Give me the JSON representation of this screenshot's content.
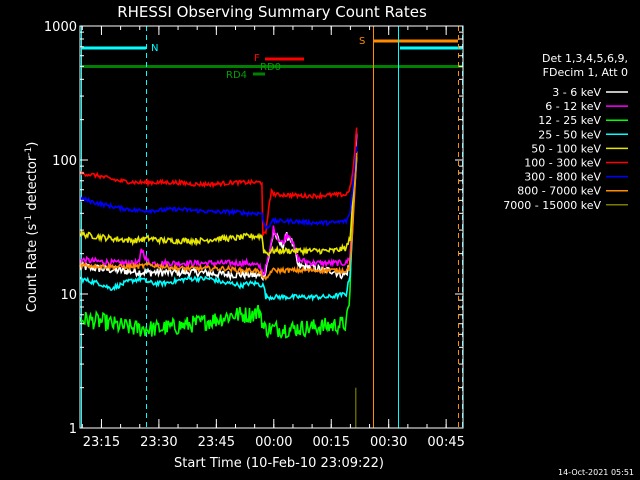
{
  "chart_data": {
    "type": "line",
    "title": "RHESSI Observing Summary Count Rates",
    "xlabel": "Start Time (10-Feb-10 23:09:22)",
    "ylabel_parts": [
      "Count Rate (s",
      "-1",
      " detector",
      "-1",
      ")"
    ],
    "y_scale": "log",
    "ylim": [
      1,
      1000
    ],
    "y_ticks": [
      {
        "value": 1,
        "label": "1"
      },
      {
        "value": 10,
        "label": "10"
      },
      {
        "value": 100,
        "label": "100"
      },
      {
        "value": 1000,
        "label": "1000"
      }
    ],
    "xlim_minutes_since_start": [
      0,
      100
    ],
    "x_ticks": [
      {
        "minute": 5.6,
        "label": "23:15"
      },
      {
        "minute": 20.6,
        "label": "23:30"
      },
      {
        "minute": 35.6,
        "label": "23:45"
      },
      {
        "minute": 50.6,
        "label": "00:00"
      },
      {
        "minute": 65.6,
        "label": "00:15"
      },
      {
        "minute": 80.6,
        "label": "00:30"
      },
      {
        "minute": 95.6,
        "label": "00:45"
      }
    ],
    "legend": {
      "position": "right",
      "header": [
        "Det 1,3,4,5,6,9,",
        "FDecim 1, Att 0"
      ]
    },
    "series": [
      {
        "name": "3 - 6 keV",
        "color": "#ffffff",
        "noise": 0.07,
        "x": [
          0,
          10,
          17,
          24,
          30,
          38,
          44,
          48,
          49.5,
          50.5,
          51.3,
          52,
          53,
          54,
          55,
          56,
          57,
          61,
          63,
          66,
          68,
          69.5,
          70.5,
          71,
          71.3,
          71.8,
          72,
          72.3
        ],
        "y": [
          16,
          15,
          14.5,
          14.5,
          14.5,
          14,
          14,
          13.5,
          20,
          29,
          27,
          24,
          23,
          27,
          26,
          21,
          16,
          16,
          15,
          15,
          14,
          14,
          17,
          30,
          50,
          90,
          120,
          165
        ]
      },
      {
        "name": "6 - 12 keV",
        "color": "#ff00ff",
        "noise": 0.05,
        "x": [
          0,
          10,
          15.5,
          16,
          17,
          18,
          23,
          30,
          38,
          44,
          47,
          48,
          49.5,
          50.5,
          51.3,
          52,
          53,
          54,
          55,
          56,
          57,
          61,
          66,
          69.5,
          70.5,
          71,
          71.3,
          71.8,
          72,
          72.3
        ],
        "y": [
          18,
          17,
          17,
          22,
          19,
          17,
          17,
          17,
          17,
          17,
          16,
          14,
          20,
          31,
          28,
          25,
          24,
          28,
          27,
          22,
          18,
          17,
          17,
          17,
          19,
          33,
          60,
          100,
          130,
          170
        ]
      },
      {
        "name": "12 - 25 keV",
        "color": "#00ff00",
        "noise": 0.15,
        "x": [
          0,
          6,
          10,
          15,
          20,
          25,
          30,
          36,
          40,
          44,
          46,
          47,
          48,
          55,
          60,
          66,
          69.5,
          70.3,
          70.6,
          71,
          71.5,
          72.3
        ],
        "y": [
          6.5,
          6.2,
          5.8,
          5.5,
          5.5,
          5.7,
          6,
          6.5,
          7,
          7,
          7.2,
          7.5,
          5.5,
          5.5,
          5.6,
          5.8,
          6,
          8,
          14,
          28,
          60,
          110
        ]
      },
      {
        "name": "25 - 50 keV",
        "color": "#00ffff",
        "noise": 0.04,
        "x": [
          0,
          5,
          8,
          10,
          13,
          16,
          17,
          19,
          22,
          25,
          28,
          31,
          34,
          36,
          38,
          40,
          42,
          44,
          46,
          48,
          48.5,
          55,
          61,
          65,
          69.5,
          70.5,
          71,
          71.5,
          72.3
        ],
        "y": [
          13,
          12,
          11,
          11.5,
          12.5,
          13,
          12.5,
          12,
          12,
          12.5,
          13,
          13,
          13,
          12.5,
          12,
          12,
          11.5,
          12,
          12,
          11.5,
          9.5,
          9.5,
          9.5,
          9.5,
          10,
          14,
          24,
          50,
          110
        ]
      },
      {
        "name": "50 - 100 keV",
        "color": "#e6e600",
        "noise": 0.05,
        "x": [
          0,
          8,
          14,
          18,
          22,
          27,
          32,
          36,
          40,
          44,
          46,
          47.5,
          48,
          49,
          50,
          55,
          61,
          66,
          69.5,
          70.5,
          71,
          71.5,
          72.3
        ],
        "y": [
          28,
          26,
          25,
          26,
          25,
          25,
          25,
          26,
          26,
          27,
          27,
          27,
          21,
          20,
          21,
          21,
          21,
          21,
          22,
          26,
          40,
          70,
          120
        ]
      },
      {
        "name": "100 - 300 keV",
        "color": "#ff0000",
        "noise": 0.035,
        "x": [
          0,
          5,
          10,
          15,
          20,
          25,
          30,
          35,
          40,
          44,
          46,
          47.5,
          47.6,
          48.5,
          49.5,
          50,
          51,
          54,
          58,
          62,
          66,
          69.5,
          70.5,
          71.2,
          71.7,
          72,
          72.3
        ],
        "y": [
          80,
          76,
          70,
          68,
          68,
          68,
          66,
          66,
          68,
          68,
          68,
          68,
          28,
          28,
          50,
          58,
          55,
          55,
          54,
          54,
          55,
          55,
          62,
          80,
          110,
          150,
          180
        ]
      },
      {
        "name": "300 - 800 keV",
        "color": "#0000ff",
        "noise": 0.035,
        "x": [
          0,
          4,
          10,
          15,
          20,
          25,
          30,
          35,
          40,
          44,
          46,
          47.5,
          48,
          49,
          50,
          55,
          61,
          66,
          69.5,
          70.5,
          71.2,
          71.7,
          72.3
        ],
        "y": [
          52,
          48,
          44,
          42,
          42,
          43,
          42,
          41,
          41,
          40,
          40,
          40,
          33,
          31,
          35,
          35,
          34,
          34,
          35,
          40,
          60,
          90,
          130
        ]
      },
      {
        "name": "800 - 7000 keV",
        "color": "#ff8c00",
        "noise": 0.04,
        "x": [
          0,
          8,
          12,
          15,
          18,
          22,
          26,
          30,
          34,
          38,
          42,
          44,
          46,
          47.5,
          48.5,
          50,
          55,
          61,
          66,
          69.5,
          70.3,
          71,
          71.6,
          72.3
        ],
        "y": [
          16.5,
          16,
          16,
          16,
          16.5,
          16,
          15.5,
          15.5,
          15.5,
          15.5,
          15,
          15,
          15,
          14,
          12.5,
          15,
          15,
          15,
          15,
          15,
          15.5,
          25,
          50,
          120
        ]
      },
      {
        "name": "7000 - 15000 keV",
        "color": "#7b7b00",
        "noise": 0,
        "x": [
          72,
          72
        ],
        "y": [
          2,
          1
        ]
      }
    ],
    "annotations": [
      {
        "text": "N",
        "color": "#00ffff"
      },
      {
        "text": "F",
        "color": "#ff0000"
      },
      {
        "text": "RD0",
        "color": "#00a000"
      },
      {
        "text": "RD4",
        "color": "#00a000"
      },
      {
        "text": "S",
        "color": "#ff8c00"
      }
    ]
  },
  "footer_timestamp": "14-Oct-2021 05:51"
}
